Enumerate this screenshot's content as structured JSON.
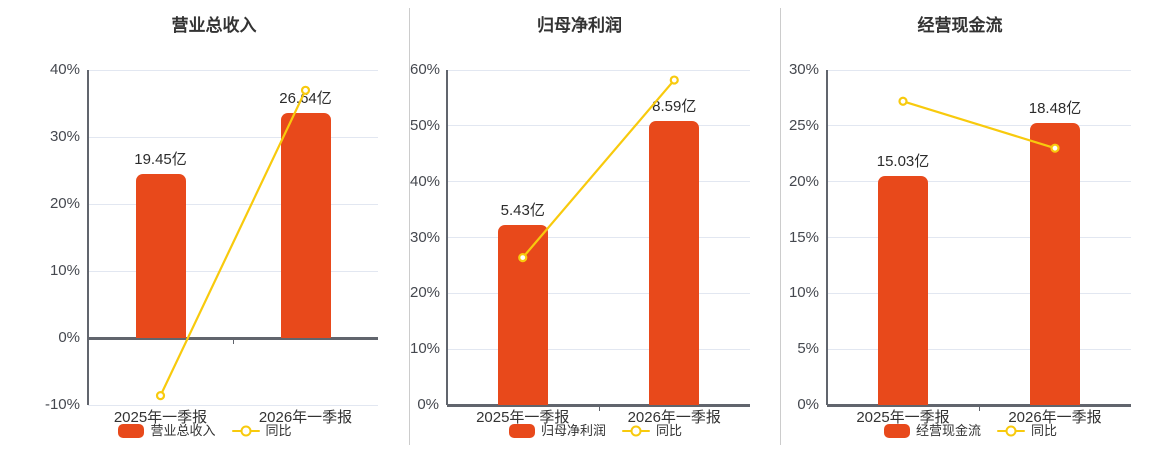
{
  "colors": {
    "bar": "#E8491B",
    "line": "#F8CA0D",
    "grid": "#E2E7F1",
    "axis": "#61656D",
    "divider": "#CCCCCC",
    "title_text": "#333333",
    "axis_text": "#45484F",
    "background": "#FFFFFF"
  },
  "chart_data": [
    {
      "type": "bar",
      "title": "营业总收入",
      "categories": [
        "2025年一季报",
        "2026年一季报"
      ],
      "bar_series": {
        "name": "营业总收入",
        "values_yi": [
          19.45,
          26.64
        ],
        "labels": [
          "19.45亿",
          "26.64亿"
        ],
        "hidden_axis_max_yi": 31.7
      },
      "line_series": {
        "name": "同比",
        "values_pct": [
          -8.6,
          36.97
        ]
      },
      "y_axis": {
        "min": -10,
        "max": 40,
        "tick_values": [
          -10,
          0,
          10,
          20,
          30,
          40
        ],
        "tick_labels": [
          "-10%",
          "0%",
          "10%",
          "20%",
          "30%",
          "40%"
        ]
      },
      "legend": {
        "bar_label": "营业总收入",
        "line_label": "同比"
      },
      "grid": true,
      "legend_position": "bottom"
    },
    {
      "type": "bar",
      "title": "归母净利润",
      "categories": [
        "2025年一季报",
        "2026年一季报"
      ],
      "bar_series": {
        "name": "归母净利润",
        "values_yi": [
          5.43,
          8.59
        ],
        "labels": [
          "5.43亿",
          "8.59亿"
        ],
        "hidden_axis_max_yi": 10.13
      },
      "line_series": {
        "name": "同比",
        "values_pct": [
          26.4,
          58.2
        ]
      },
      "y_axis": {
        "min": 0,
        "max": 60,
        "tick_values": [
          0,
          10,
          20,
          30,
          40,
          50,
          60
        ],
        "tick_labels": [
          "0%",
          "10%",
          "20%",
          "30%",
          "40%",
          "50%",
          "60%"
        ]
      },
      "legend": {
        "bar_label": "归母净利润",
        "line_label": "同比"
      },
      "grid": true,
      "legend_position": "bottom"
    },
    {
      "type": "bar",
      "title": "经营现金流",
      "categories": [
        "2025年一季报",
        "2026年一季报"
      ],
      "bar_series": {
        "name": "经营现金流",
        "values_yi": [
          15.03,
          18.48
        ],
        "labels": [
          "15.03亿",
          "18.48亿"
        ],
        "hidden_axis_max_yi": 21.95
      },
      "line_series": {
        "name": "同比",
        "values_pct": [
          27.2,
          23.0
        ]
      },
      "y_axis": {
        "min": 0,
        "max": 30,
        "tick_values": [
          0,
          5,
          10,
          15,
          20,
          25,
          30
        ],
        "tick_labels": [
          "0%",
          "5%",
          "10%",
          "15%",
          "20%",
          "25%",
          "30%"
        ]
      },
      "legend": {
        "bar_label": "经营现金流",
        "line_label": "同比"
      },
      "grid": true,
      "legend_position": "bottom"
    }
  ]
}
